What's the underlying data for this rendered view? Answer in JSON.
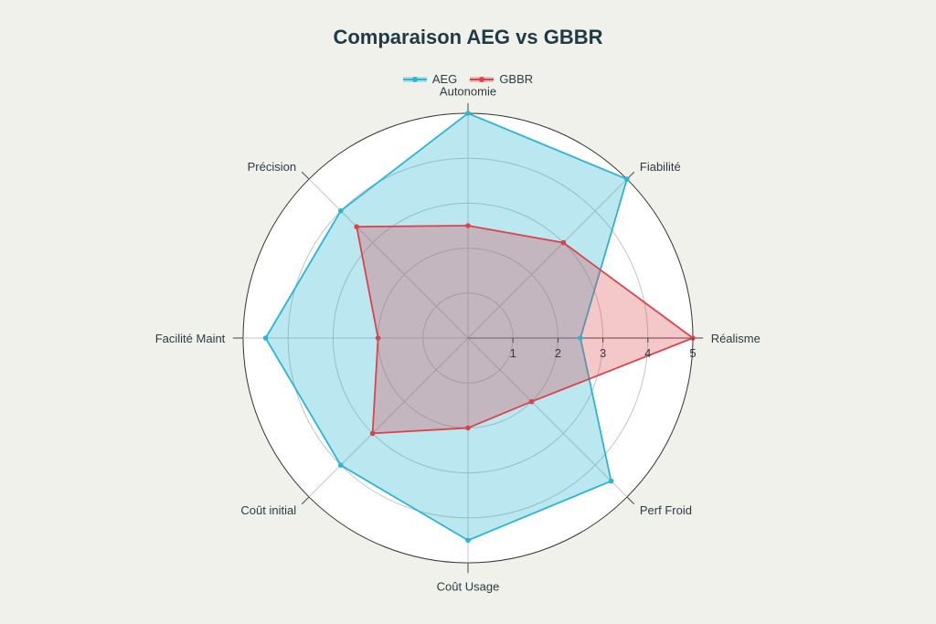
{
  "chart_data": {
    "type": "radar",
    "title": "Comparaison AEG vs GBBR",
    "axes": [
      "Autonomie",
      "Fiabilité",
      "Réalisme",
      "Perf Froid",
      "Coût Usage",
      "Coût initial",
      "Facilité Maint",
      "Précision"
    ],
    "rlim": [
      0,
      5
    ],
    "ticks": [
      1,
      2,
      3,
      4,
      5
    ],
    "legend_position": "top-center",
    "series": [
      {
        "name": "AEG",
        "values": [
          5,
          5,
          2.5,
          4.5,
          4.5,
          4,
          4.5,
          4
        ],
        "color": "#2bb5cf",
        "fill": "rgba(43,181,207,0.32)"
      },
      {
        "name": "GBBR",
        "values": [
          2.5,
          3,
          5,
          2,
          2,
          3,
          2,
          3.5
        ],
        "color": "#d9444c",
        "fill": "rgba(217,68,76,0.30)"
      }
    ]
  }
}
